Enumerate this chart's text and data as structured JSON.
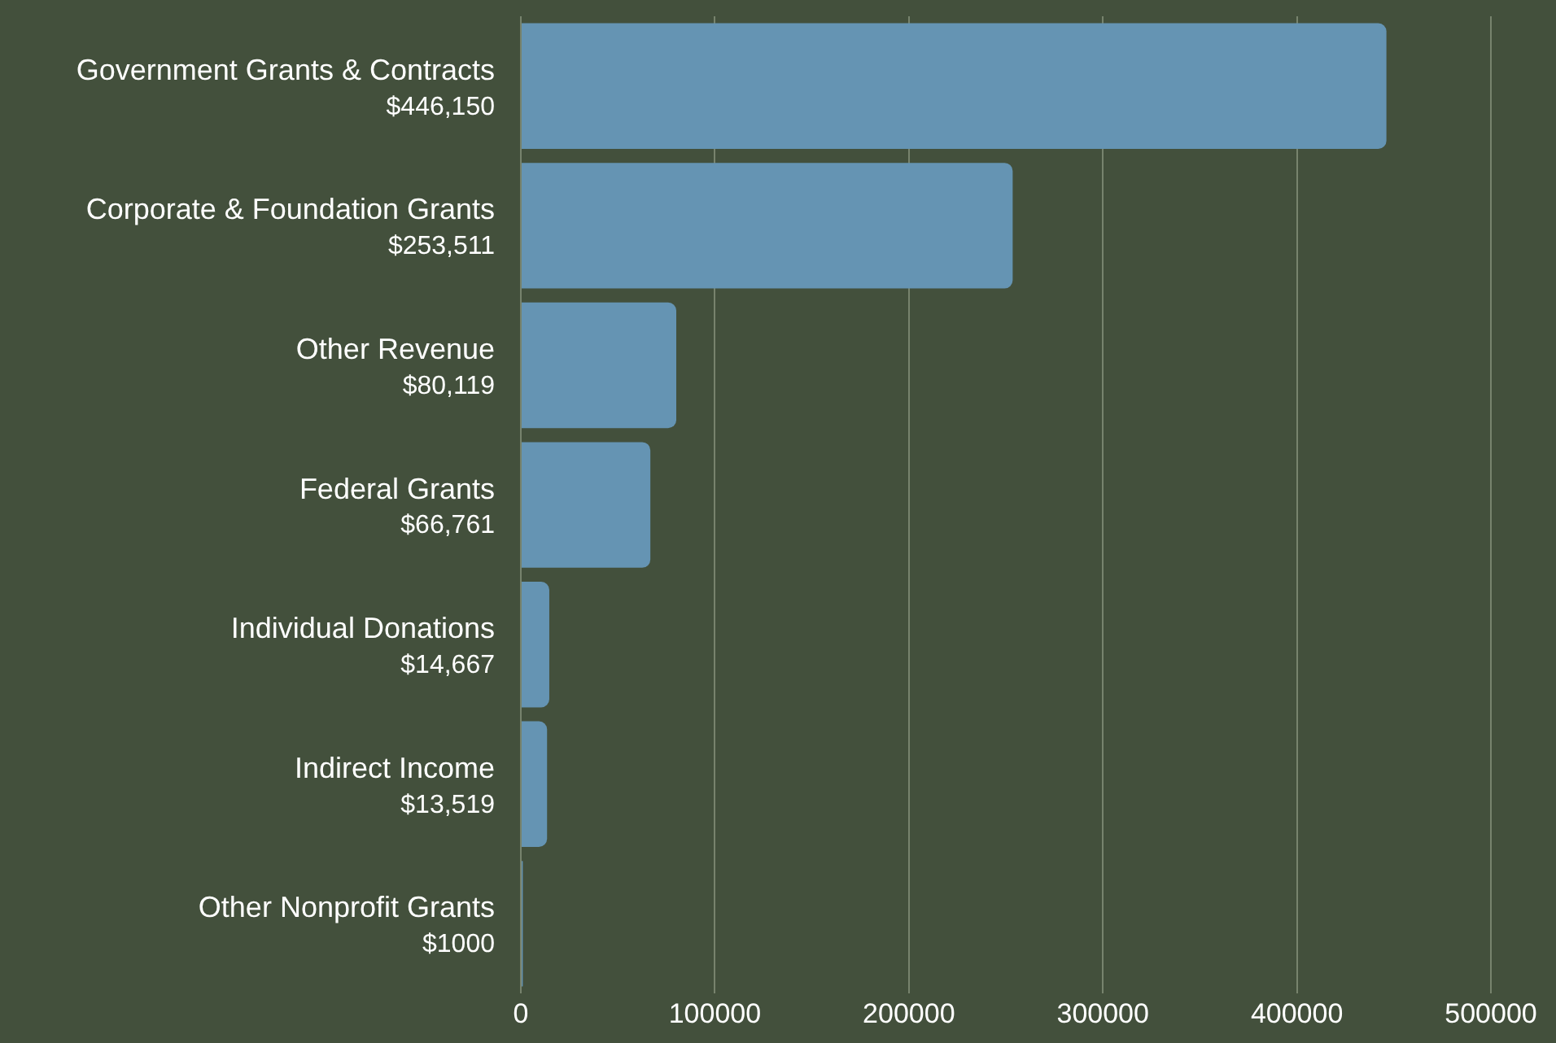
{
  "chart_data": {
    "type": "bar",
    "orientation": "horizontal",
    "categories": [
      "Government Grants & Contracts",
      "Corporate & Foundation Grants",
      "Other Revenue",
      "Federal Grants",
      "Individual Donations",
      "Indirect Income",
      "Other Nonprofit Grants"
    ],
    "values": [
      446150,
      253511,
      80119,
      66761,
      14667,
      13519,
      1000
    ],
    "value_labels": [
      "$446,150",
      "$253,511",
      "$80,119",
      "$66,761",
      "$14,667",
      "$13,519",
      "$1000"
    ],
    "color": "#6594b3",
    "xlim": [
      0,
      500000
    ],
    "xticks": [
      0,
      100000,
      200000,
      300000,
      400000,
      500000
    ],
    "grid": "x",
    "legend": false
  }
}
